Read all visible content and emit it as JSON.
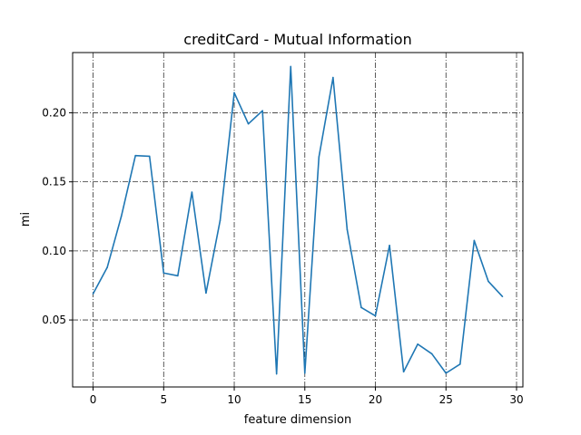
{
  "chart_data": {
    "type": "line",
    "title": "creditCard - Mutual Information",
    "xlabel": "feature dimension",
    "ylabel": "mi",
    "xlim": [
      -1.45,
      30.45
    ],
    "ylim": [
      0.0015,
      0.2436
    ],
    "xticks": [
      0,
      5,
      10,
      15,
      20,
      25,
      30
    ],
    "xtick_labels": [
      "0",
      "5",
      "10",
      "15",
      "20",
      "25",
      "30"
    ],
    "yticks": [
      0.05,
      0.1,
      0.15,
      0.2
    ],
    "ytick_labels": [
      "0.05",
      "0.10",
      "0.15",
      "0.20"
    ],
    "grid": true,
    "color": "#1f77b4",
    "x": [
      0,
      1,
      2,
      3,
      4,
      5,
      6,
      7,
      8,
      9,
      10,
      11,
      12,
      13,
      14,
      15,
      16,
      17,
      18,
      19,
      20,
      21,
      22,
      23,
      24,
      25,
      26,
      27,
      28,
      29
    ],
    "values": [
      0.069,
      0.088,
      0.125,
      0.169,
      0.1685,
      0.084,
      0.082,
      0.1425,
      0.0695,
      0.122,
      0.2145,
      0.192,
      0.2015,
      0.011,
      0.2335,
      0.0115,
      0.168,
      0.2255,
      0.1155,
      0.059,
      0.053,
      0.104,
      0.0125,
      0.0325,
      0.0255,
      0.0115,
      0.018,
      0.1075,
      0.078,
      0.067
    ]
  }
}
